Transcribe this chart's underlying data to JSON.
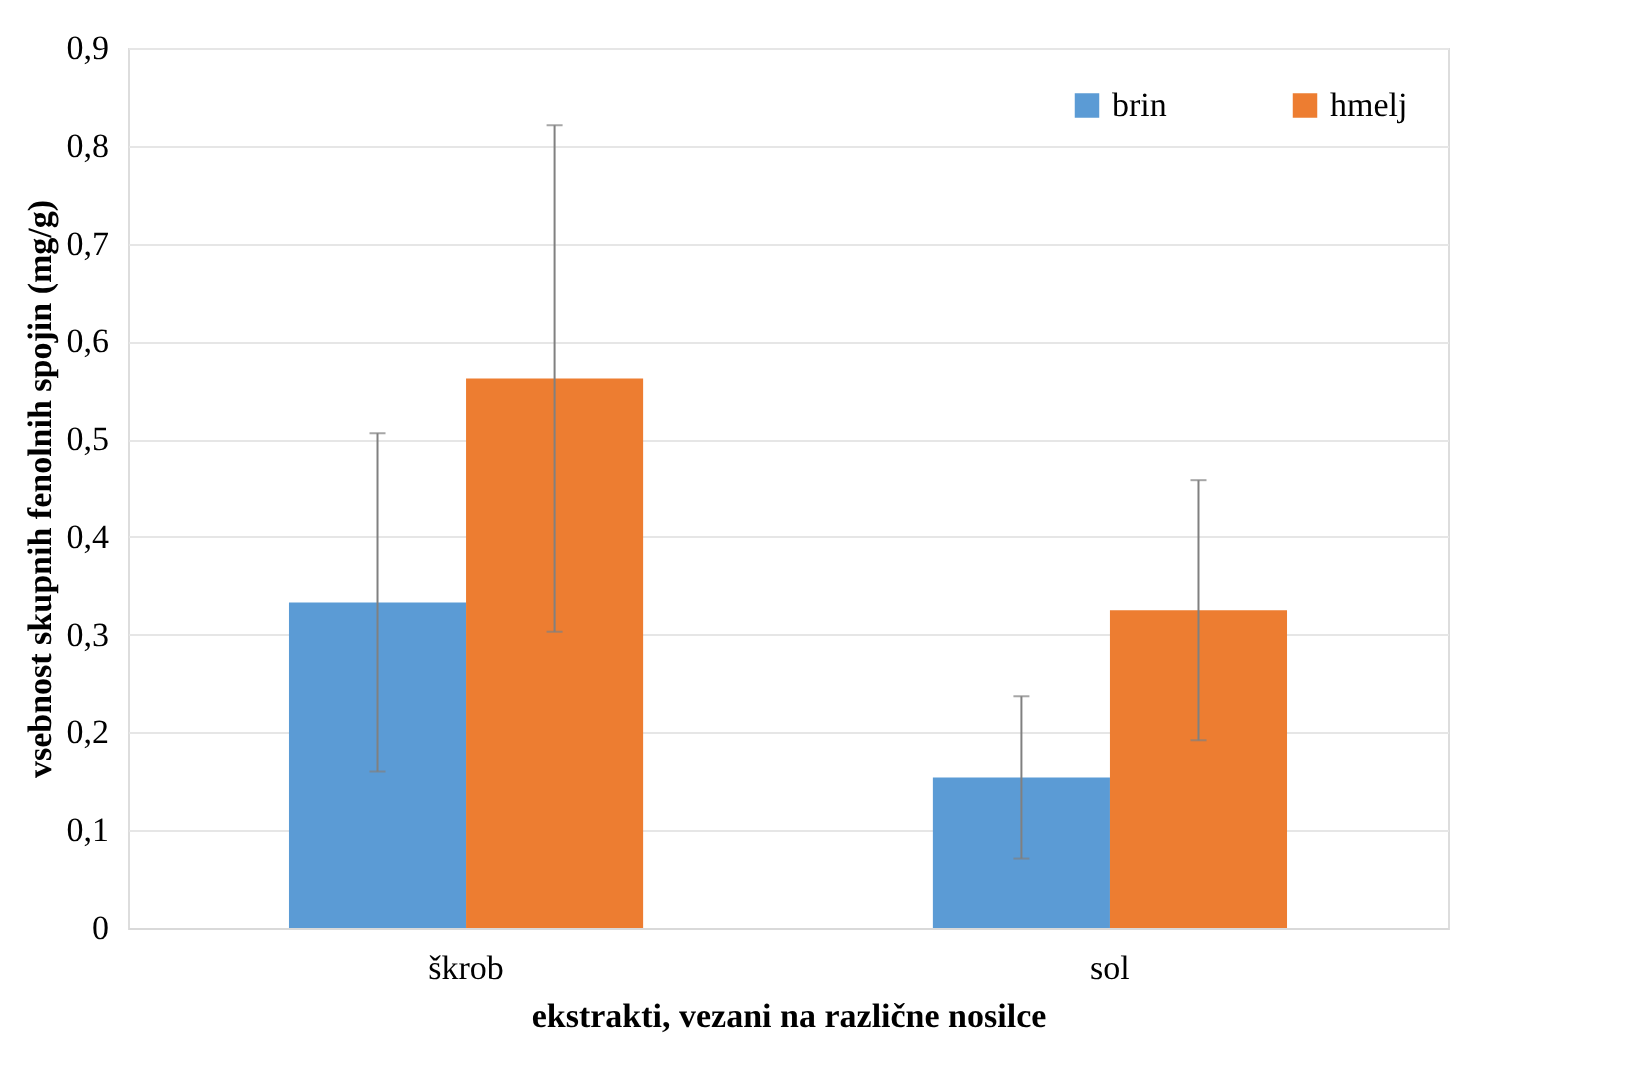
{
  "chart_data": {
    "type": "bar",
    "xlabel": "ekstrakti, vezani na različne nosilce",
    "ylabel": "vsebnost skupnih fenolnih spojin (mg/g)",
    "categories": [
      "škrob",
      "sol"
    ],
    "series": [
      {
        "name": "brin",
        "color": "#5b9bd5",
        "values": [
          0.333,
          0.154
        ],
        "errors": [
          0.173,
          0.083
        ]
      },
      {
        "name": "hmelj",
        "color": "#ed7d31",
        "values": [
          0.562,
          0.325
        ],
        "errors": [
          0.259,
          0.133
        ]
      }
    ],
    "ylim": [
      0,
      0.9
    ],
    "yticks": [
      {
        "value": 0,
        "label": "0"
      },
      {
        "value": 0.1,
        "label": "0,1"
      },
      {
        "value": 0.2,
        "label": "0,2"
      },
      {
        "value": 0.3,
        "label": "0,3"
      },
      {
        "value": 0.4,
        "label": "0,4"
      },
      {
        "value": 0.5,
        "label": "0,5"
      },
      {
        "value": 0.6,
        "label": "0,6"
      },
      {
        "value": 0.7,
        "label": "0,7"
      },
      {
        "value": 0.8,
        "label": "0,8"
      },
      {
        "value": 0.9,
        "label": "0,9"
      }
    ],
    "grid": "y",
    "legend": "top right"
  }
}
